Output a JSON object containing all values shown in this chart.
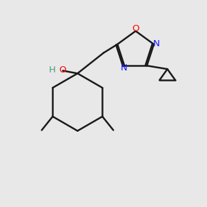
{
  "background_color": "#e8e8e8",
  "bond_color": "#1a1a1a",
  "bond_width": 1.8,
  "N_color": "#1414ff",
  "O_color": "#ff0000",
  "H_color": "#4a9a7a",
  "figsize": [
    3.0,
    3.0
  ],
  "dpi": 100,
  "xlim": [
    0,
    3.0
  ],
  "ylim": [
    0,
    3.0
  ]
}
